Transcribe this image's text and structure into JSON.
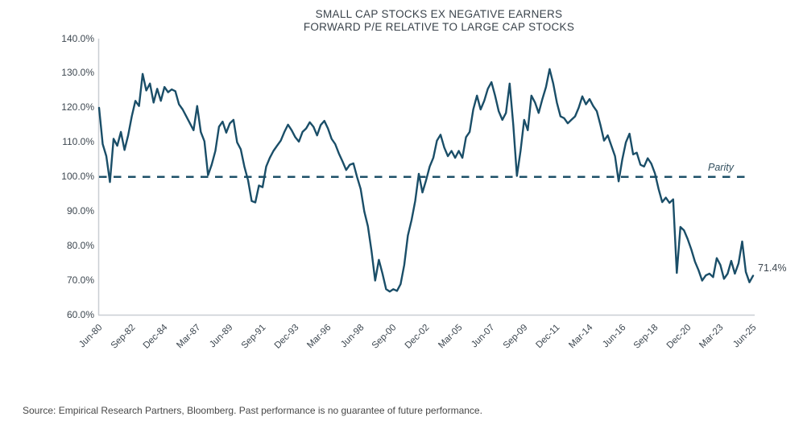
{
  "title": {
    "line1": "SMALL CAP STOCKS EX NEGATIVE EARNERS",
    "line2": "FORWARD P/E RELATIVE TO LARGE CAP STOCKS"
  },
  "annotations": {
    "parity_label": "Parity",
    "last_value_label": "71.4%"
  },
  "source_note": "Source: Empirical Research Partners, Bloomberg. Past performance is no guarantee of future performance.",
  "colors": {
    "line": "#1a4e68",
    "dashed": "#1d5068",
    "axis": "#c9ced3",
    "title_text": "#3a434b",
    "tick_text": "#3d4750",
    "source_text": "#474747"
  },
  "chart_data": {
    "type": "line",
    "title": "SMALL CAP STOCKS EX NEGATIVE EARNERS FORWARD P/E RELATIVE TO LARGE CAP STOCKS",
    "x_start": "Jun-80",
    "x_end": "Jun-25",
    "frequency": "quarterly",
    "x_tick_labels": [
      "Jun-80",
      "Sep-82",
      "Dec-84",
      "Mar-87",
      "Jun-89",
      "Sep-91",
      "Dec-93",
      "Mar-96",
      "Jun-98",
      "Sep-00",
      "Dec-02",
      "Mar-05",
      "Jun-07",
      "Sep-09",
      "Dec-11",
      "Mar-14",
      "Jun-16",
      "Sep-18",
      "Dec-20",
      "Mar-23",
      "Jun-25"
    ],
    "y_tick_labels": [
      "140.0%",
      "130.0%",
      "120.0%",
      "110.0%",
      "100.0%",
      "90.0%",
      "80.0%",
      "70.0%",
      "60.0%"
    ],
    "ylim": [
      60,
      140
    ],
    "y_unit": "%",
    "grid": false,
    "legend": false,
    "parity_line": 100,
    "last_value": 71.4,
    "series": [
      {
        "name": "Small cap stocks ex negative earners forward P/E relative to large cap stocks",
        "values": [
          120.0,
          109.5,
          106.0,
          98.5,
          111.0,
          109.0,
          113.0,
          107.8,
          112.0,
          117.5,
          122.0,
          120.5,
          129.8,
          125.0,
          127.0,
          121.5,
          125.5,
          122.0,
          126.0,
          124.5,
          125.3,
          124.8,
          121.0,
          119.5,
          117.5,
          115.5,
          113.5,
          120.5,
          113.0,
          110.3,
          100.5,
          103.5,
          107.5,
          114.5,
          116.0,
          112.8,
          115.5,
          116.5,
          110.0,
          108.0,
          103.0,
          99.0,
          93.0,
          92.6,
          97.5,
          97.0,
          103.0,
          105.5,
          107.5,
          109.0,
          110.5,
          113.0,
          115.1,
          113.5,
          111.5,
          110.2,
          113.0,
          114.0,
          115.8,
          114.5,
          112.0,
          115.0,
          116.2,
          114.0,
          111.0,
          109.5,
          106.8,
          104.5,
          102.0,
          103.5,
          103.9,
          100.0,
          96.5,
          90.0,
          85.7,
          78.5,
          70.0,
          76.0,
          72.0,
          67.5,
          66.8,
          67.5,
          67.0,
          69.0,
          74.5,
          83.0,
          87.5,
          93.0,
          100.9,
          95.5,
          99.0,
          103.0,
          105.5,
          110.5,
          112.2,
          108.5,
          106.0,
          107.5,
          105.5,
          107.5,
          105.5,
          111.5,
          113.0,
          119.5,
          123.5,
          119.5,
          122.0,
          125.5,
          127.4,
          123.5,
          119.0,
          116.5,
          118.5,
          127.0,
          115.0,
          100.3,
          107.5,
          116.5,
          113.5,
          123.5,
          121.5,
          118.5,
          122.5,
          126.0,
          131.2,
          127.0,
          121.5,
          117.5,
          117.0,
          115.5,
          116.5,
          117.5,
          120.0,
          123.3,
          121.0,
          122.5,
          120.5,
          119.0,
          115.0,
          110.5,
          112.0,
          109.0,
          106.0,
          98.7,
          105.0,
          110.0,
          112.5,
          106.5,
          107.0,
          103.5,
          103.0,
          105.4,
          103.8,
          101.0,
          96.5,
          92.7,
          94.0,
          92.5,
          93.5,
          72.2,
          85.5,
          84.5,
          82.0,
          79.0,
          75.5,
          73.0,
          70.0,
          71.5,
          72.0,
          71.0,
          76.5,
          74.5,
          70.5,
          72.0,
          75.7,
          72.0,
          75.0,
          81.3,
          72.5,
          69.5,
          71.4
        ]
      }
    ]
  }
}
